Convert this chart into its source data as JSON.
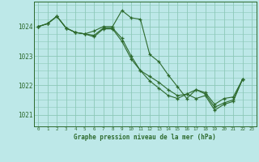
{
  "title": "Graphe pression niveau de la mer (hPa)",
  "background_color": "#bde8e8",
  "line_color": "#2d6a2d",
  "grid_color": "#8cc8b8",
  "xlim": [
    -0.5,
    23.5
  ],
  "ylim": [
    1020.6,
    1024.85
  ],
  "yticks": [
    1021,
    1022,
    1023,
    1024
  ],
  "xticks": [
    0,
    1,
    2,
    3,
    4,
    5,
    6,
    7,
    8,
    9,
    10,
    11,
    12,
    13,
    14,
    15,
    16,
    17,
    18,
    19,
    20,
    21,
    22,
    23
  ],
  "series": [
    [
      1024.0,
      1024.1,
      1024.35,
      1023.95,
      1023.8,
      1023.75,
      1023.85,
      1024.0,
      1024.0,
      1024.55,
      1024.3,
      1024.25,
      1023.05,
      1022.8,
      1022.35,
      1021.95,
      1021.55,
      1021.85,
      1021.75,
      1021.35,
      1021.55,
      1021.6,
      1022.2,
      null
    ],
    [
      1024.0,
      1024.1,
      1024.35,
      1023.95,
      1023.8,
      1023.75,
      1023.7,
      1023.95,
      1023.95,
      1023.6,
      1023.0,
      1022.5,
      1022.3,
      1022.1,
      1021.85,
      1021.65,
      1021.7,
      1021.85,
      1021.7,
      1021.25,
      1021.4,
      1021.5,
      1022.2,
      null
    ],
    [
      1024.0,
      1024.1,
      1024.35,
      1023.95,
      1023.8,
      1023.75,
      1023.65,
      1023.92,
      1023.92,
      1023.5,
      1022.9,
      1022.5,
      1022.15,
      1021.9,
      1021.65,
      1021.55,
      1021.7,
      1021.55,
      1021.65,
      1021.15,
      1021.35,
      1021.45,
      1022.2,
      null
    ]
  ]
}
